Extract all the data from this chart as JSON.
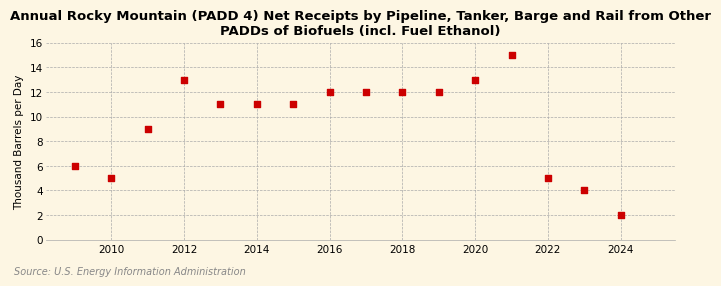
{
  "title": "Annual Rocky Mountain (PADD 4) Net Receipts by Pipeline, Tanker, Barge and Rail from Other\nPADDs of Biofuels (incl. Fuel Ethanol)",
  "ylabel": "Thousand Barrels per Day",
  "source": "Source: U.S. Energy Information Administration",
  "x": [
    2009,
    2010,
    2011,
    2012,
    2013,
    2014,
    2015,
    2016,
    2017,
    2018,
    2019,
    2020,
    2021,
    2022,
    2023,
    2024
  ],
  "y": [
    6,
    5,
    9,
    13,
    11,
    11,
    11,
    12,
    12,
    12,
    12,
    13,
    15,
    5,
    4,
    2
  ],
  "marker_color": "#cc0000",
  "marker": "s",
  "marker_size": 4,
  "xlim": [
    2008.2,
    2025.5
  ],
  "ylim": [
    0,
    16
  ],
  "yticks": [
    0,
    2,
    4,
    6,
    8,
    10,
    12,
    14,
    16
  ],
  "xticks": [
    2010,
    2012,
    2014,
    2016,
    2018,
    2020,
    2022,
    2024
  ],
  "background_color": "#fdf6e3",
  "grid_color": "#aaaaaa",
  "title_fontsize": 9.5,
  "axis_label_fontsize": 7.5,
  "tick_fontsize": 7.5,
  "source_fontsize": 7,
  "source_color": "#888888"
}
